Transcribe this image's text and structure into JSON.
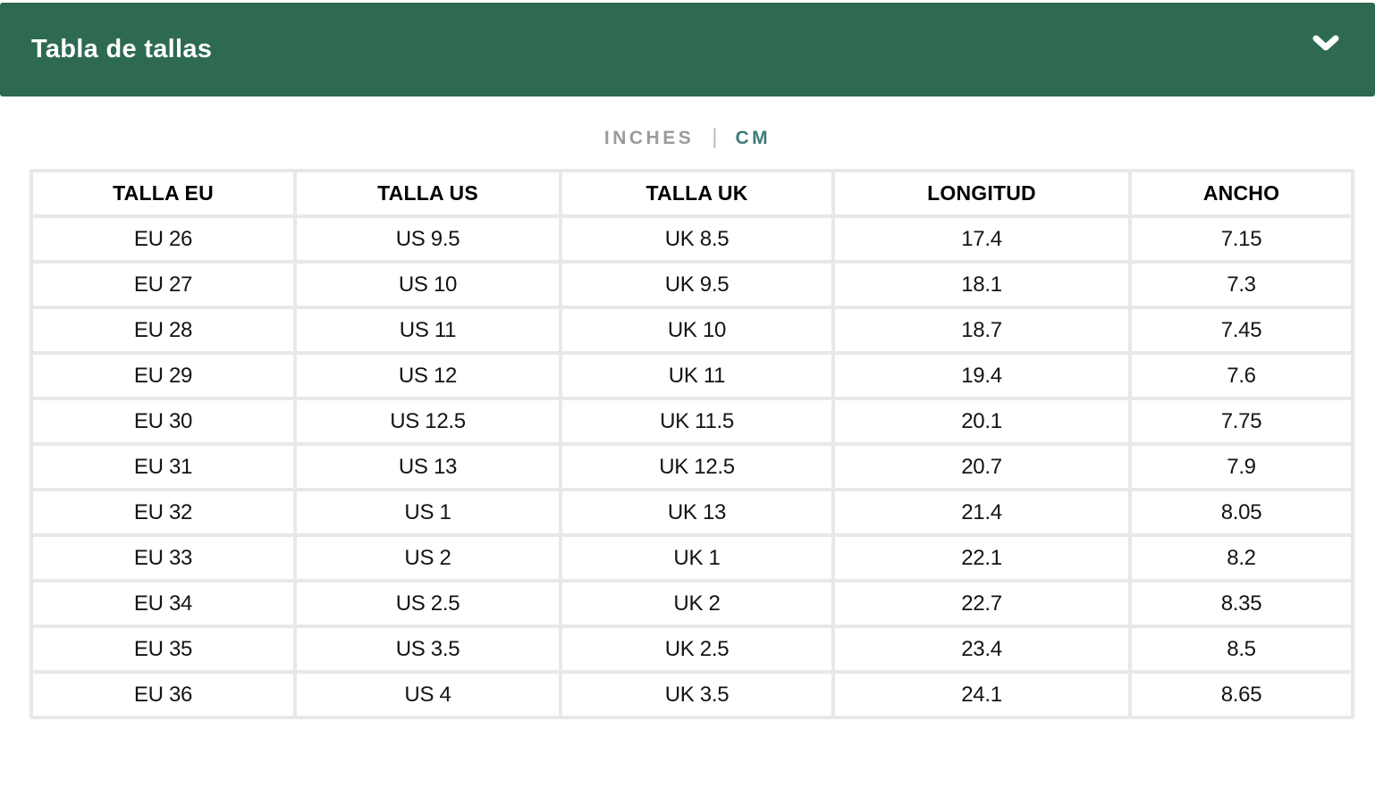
{
  "header": {
    "title": "Tabla de tallas",
    "collapse_icon": "chevron-down"
  },
  "unit_toggle": {
    "separator": "|",
    "options": [
      {
        "label": "INCHES",
        "active": false
      },
      {
        "label": "CM",
        "active": true
      }
    ]
  },
  "table": {
    "columns": [
      "TALLA EU",
      "TALLA US",
      "TALLA UK",
      "LONGITUD",
      "ANCHO"
    ],
    "rows": [
      [
        "EU 26",
        "US 9.5",
        "UK 8.5",
        "17.4",
        "7.15"
      ],
      [
        "EU 27",
        "US 10",
        "UK 9.5",
        "18.1",
        "7.3"
      ],
      [
        "EU 28",
        "US 11",
        "UK 10",
        "18.7",
        "7.45"
      ],
      [
        "EU 29",
        "US 12",
        "UK 11",
        "19.4",
        "7.6"
      ],
      [
        "EU 30",
        "US 12.5",
        "UK 11.5",
        "20.1",
        "7.75"
      ],
      [
        "EU 31",
        "US 13",
        "UK 12.5",
        "20.7",
        "7.9"
      ],
      [
        "EU 32",
        "US 1",
        "UK 13",
        "21.4",
        "8.05"
      ],
      [
        "EU 33",
        "US 2",
        "UK 1",
        "22.1",
        "8.2"
      ],
      [
        "EU 34",
        "US 2.5",
        "UK 2",
        "22.7",
        "8.35"
      ],
      [
        "EU 35",
        "US 3.5",
        "UK 2.5",
        "23.4",
        "8.5"
      ],
      [
        "EU 36",
        "US 4",
        "UK 3.5",
        "24.1",
        "8.65"
      ]
    ]
  },
  "colors": {
    "header_bg": "#2d6a51",
    "active_unit": "#3e7b79",
    "inactive_unit": "#9b9b9b",
    "grid_lines": "#e7e8ea",
    "cell_bg": "#ffffff"
  }
}
